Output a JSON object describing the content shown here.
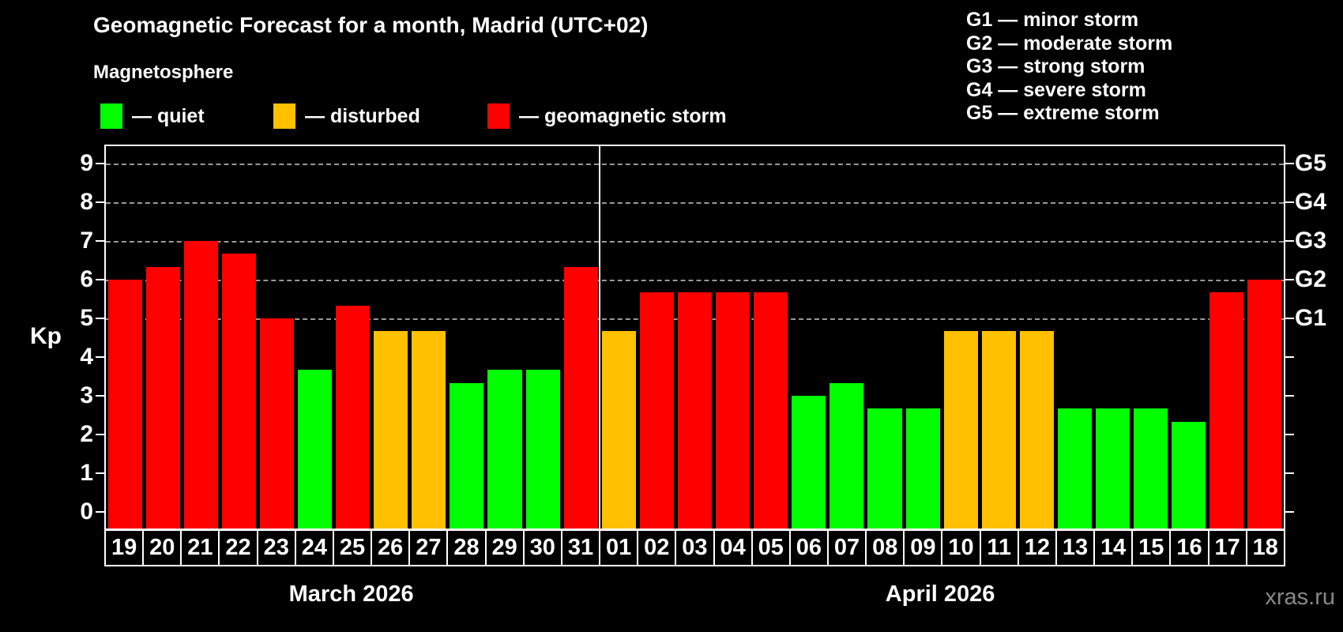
{
  "header": {
    "title": "Geomagnetic Forecast for a month, Madrid (UTC+02)",
    "subtitle": "Magnetosphere"
  },
  "legend": [
    {
      "name": "quiet",
      "label": "— quiet",
      "color": "#00ff00"
    },
    {
      "name": "disturbed",
      "label": "— disturbed",
      "color": "#ffc000"
    },
    {
      "name": "storm",
      "label": "— geomagnetic storm",
      "color": "#ff0000"
    }
  ],
  "g_legend": [
    "G1 — minor storm",
    "G2 — moderate storm",
    "G3 — strong storm",
    "G4 — severe storm",
    "G5 — extreme storm"
  ],
  "watermark": "xras.ru",
  "chart_data": {
    "type": "bar",
    "ylabel": "Kp",
    "ylim": [
      -0.43,
      9.45
    ],
    "y_ticks": [
      0,
      1,
      2,
      3,
      4,
      5,
      6,
      7,
      8,
      9
    ],
    "grid_levels_kp": [
      5,
      6,
      7,
      8,
      9
    ],
    "right_axis": [
      {
        "kp": 5,
        "label": "G1"
      },
      {
        "kp": 6,
        "label": "G2"
      },
      {
        "kp": 7,
        "label": "G3"
      },
      {
        "kp": 8,
        "label": "G4"
      },
      {
        "kp": 9,
        "label": "G5"
      }
    ],
    "colors": {
      "quiet": "#00ff00",
      "disturbed": "#ffc000",
      "storm": "#ff0000"
    },
    "months": [
      {
        "label": "March 2026",
        "days": [
          {
            "day": "19",
            "kp": 6.0,
            "status": "storm"
          },
          {
            "day": "20",
            "kp": 6.33,
            "status": "storm"
          },
          {
            "day": "21",
            "kp": 7.0,
            "status": "storm"
          },
          {
            "day": "22",
            "kp": 6.67,
            "status": "storm"
          },
          {
            "day": "23",
            "kp": 5.0,
            "status": "storm"
          },
          {
            "day": "24",
            "kp": 3.67,
            "status": "quiet"
          },
          {
            "day": "25",
            "kp": 5.33,
            "status": "storm"
          },
          {
            "day": "26",
            "kp": 4.67,
            "status": "disturbed"
          },
          {
            "day": "27",
            "kp": 4.67,
            "status": "disturbed"
          },
          {
            "day": "28",
            "kp": 3.33,
            "status": "quiet"
          },
          {
            "day": "29",
            "kp": 3.67,
            "status": "quiet"
          },
          {
            "day": "30",
            "kp": 3.67,
            "status": "quiet"
          },
          {
            "day": "31",
            "kp": 6.33,
            "status": "storm"
          }
        ]
      },
      {
        "label": "April 2026",
        "days": [
          {
            "day": "01",
            "kp": 4.67,
            "status": "disturbed"
          },
          {
            "day": "02",
            "kp": 5.67,
            "status": "storm"
          },
          {
            "day": "03",
            "kp": 5.67,
            "status": "storm"
          },
          {
            "day": "04",
            "kp": 5.67,
            "status": "storm"
          },
          {
            "day": "05",
            "kp": 5.67,
            "status": "storm"
          },
          {
            "day": "06",
            "kp": 3.0,
            "status": "quiet"
          },
          {
            "day": "07",
            "kp": 3.33,
            "status": "quiet"
          },
          {
            "day": "08",
            "kp": 2.67,
            "status": "quiet"
          },
          {
            "day": "09",
            "kp": 2.67,
            "status": "quiet"
          },
          {
            "day": "10",
            "kp": 4.67,
            "status": "disturbed"
          },
          {
            "day": "11",
            "kp": 4.67,
            "status": "disturbed"
          },
          {
            "day": "12",
            "kp": 4.67,
            "status": "disturbed"
          },
          {
            "day": "13",
            "kp": 2.67,
            "status": "quiet"
          },
          {
            "day": "14",
            "kp": 2.67,
            "status": "quiet"
          },
          {
            "day": "15",
            "kp": 2.67,
            "status": "quiet"
          },
          {
            "day": "16",
            "kp": 2.33,
            "status": "quiet"
          },
          {
            "day": "17",
            "kp": 5.67,
            "status": "storm"
          },
          {
            "day": "18",
            "kp": 6.0,
            "status": "storm"
          }
        ]
      }
    ]
  }
}
